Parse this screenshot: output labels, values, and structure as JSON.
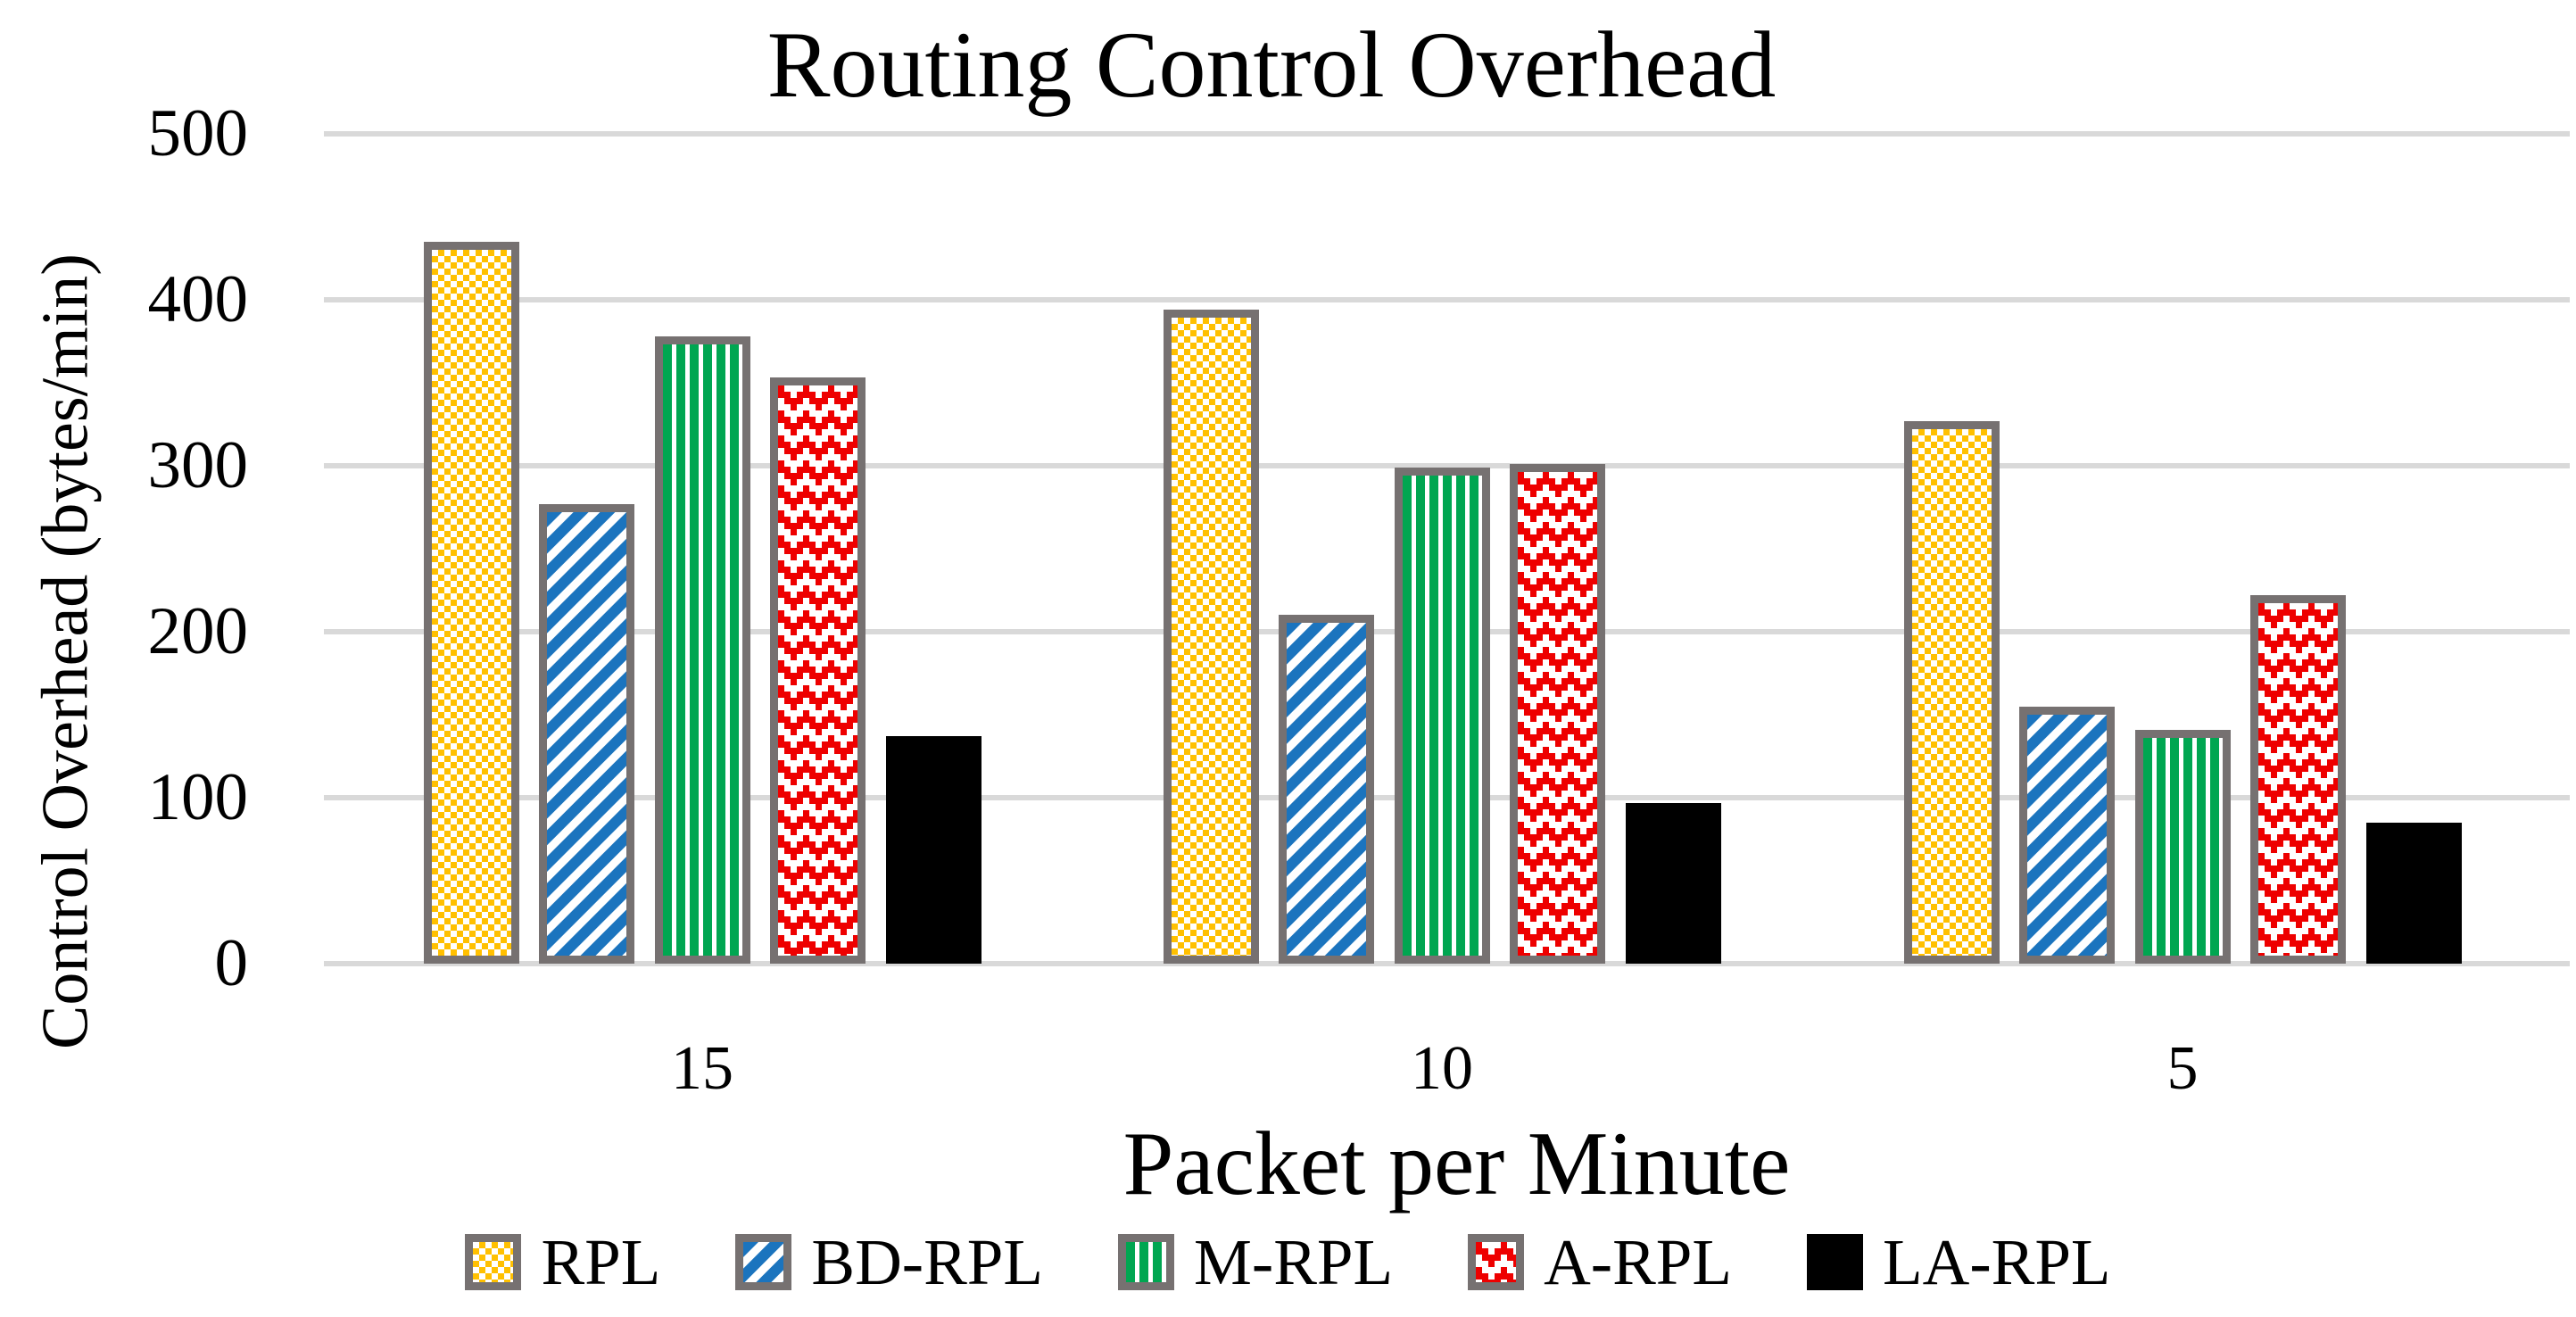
{
  "page": {
    "background": "#FFFFFF"
  },
  "chart_data": {
    "type": "bar",
    "title": "Routing Control Overhead",
    "xlabel": "Packet per Minute",
    "ylabel": "Control Overhead (bytes/min)",
    "categories": [
      "15",
      "10",
      "5"
    ],
    "series": [
      {
        "name": "RPL",
        "color": "#FFC000",
        "pattern": "yellow-white-checker",
        "values": [
          435,
          394,
          327
        ]
      },
      {
        "name": "BD-RPL",
        "color": "#1B74BE",
        "pattern": "blue-diagonal-stripes-up",
        "values": [
          277,
          210,
          155
        ]
      },
      {
        "name": "M-RPL",
        "color": "#00A651",
        "pattern": "green-vertical-stripes",
        "values": [
          378,
          299,
          141
        ]
      },
      {
        "name": "A-RPL",
        "color": "#EE0000",
        "pattern": "red-zigzag-herringbone",
        "values": [
          353,
          301,
          222
        ]
      },
      {
        "name": "LA-RPL",
        "color": "#000000",
        "pattern": "solid-black",
        "values": [
          137,
          97,
          85
        ]
      }
    ],
    "ylim": [
      0,
      500
    ],
    "ytick_step": 100,
    "yticks": [
      "500",
      "400",
      "300",
      "200",
      "100",
      "0"
    ],
    "grid": true,
    "legend_position": "bottom",
    "gridline_color": "#D9D9D9",
    "bar_border_color": "#767171"
  }
}
